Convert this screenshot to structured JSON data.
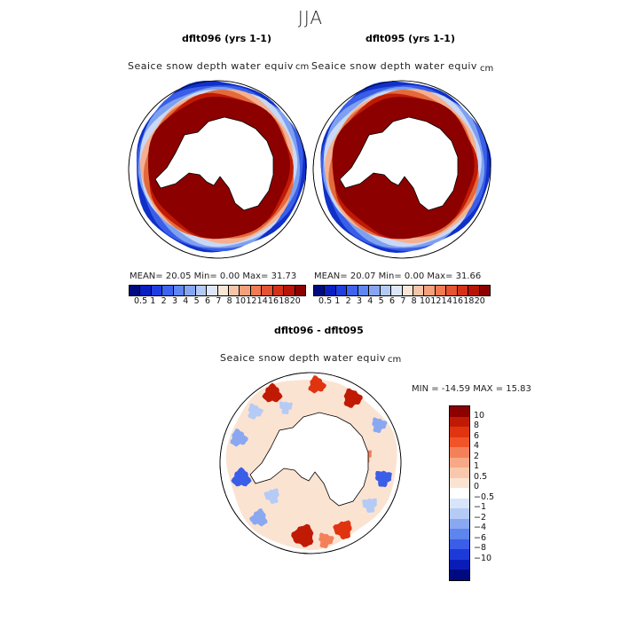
{
  "season": "JJA",
  "panels": [
    {
      "title": "dflt096 (yrs 1-1)",
      "variable": "Seaice snow depth water equiv",
      "units": "cm",
      "stats": {
        "mean": "20.05",
        "min": "0.00",
        "max": "31.73"
      },
      "stats_text": "MEAN=  20.05   Min=    0.00   Max=  31.73"
    },
    {
      "title": "dflt095 (yrs 1-1)",
      "variable": "Seaice snow depth water equiv",
      "units": "cm",
      "stats": {
        "mean": "20.07",
        "min": "0.00",
        "max": "31.66"
      },
      "stats_text": "MEAN=  20.07   Min=    0.00   Max=  31.66"
    },
    {
      "title": "dflt096 - dflt095",
      "variable": "Seaice snow depth water equiv",
      "units": "cm",
      "stats": {
        "min": "-14.59",
        "max": "15.83"
      },
      "stats_text": "MIN = -14.59 MAX =  15.83"
    }
  ],
  "colorbar_abs": {
    "labels": [
      "0.5",
      "1",
      "2",
      "3",
      "4",
      "5",
      "6",
      "7",
      "8",
      "10",
      "12",
      "14",
      "16",
      "18",
      "20"
    ],
    "colors": [
      "#000a80",
      "#0a1fc2",
      "#1f3ee0",
      "#3e63ee",
      "#5f86f2",
      "#86a6f3",
      "#b3c9f6",
      "#dde7fa",
      "#fae6d6",
      "#f8c4a8",
      "#f4a07a",
      "#f07a52",
      "#e45332",
      "#d43218",
      "#b81408",
      "#8c0000"
    ]
  },
  "colorbar_diff": {
    "labels": [
      "10",
      "8",
      "6",
      "4",
      "2",
      "1",
      "0.5",
      "0",
      "−0.5",
      "−1",
      "−2",
      "−4",
      "−6",
      "−8",
      "−10"
    ],
    "colors": [
      "#8c0000",
      "#c01a05",
      "#e03410",
      "#f05428",
      "#f4805a",
      "#f7a886",
      "#f9c8ac",
      "#fbe3d2",
      "#ffffff",
      "#d8e4fa",
      "#b5cbf6",
      "#8aa8f2",
      "#5e84ee",
      "#3a5ee8",
      "#1d3ad8",
      "#0a1cb8",
      "#000a80"
    ]
  },
  "map_colors": {
    "abs_high": "#8c0000",
    "abs_ring": [
      "#c01a05",
      "#e46a3c",
      "#f4b090",
      "#c8d8f6",
      "#7ea0f0",
      "#3a5ee8",
      "#1030c8"
    ],
    "diff_fill": "#fbe3d2",
    "diff_pos": [
      "#f4805a",
      "#e03410",
      "#c01a05"
    ],
    "diff_neg": [
      "#b5cbf6",
      "#8aa8f2",
      "#3a5ee8"
    ]
  }
}
